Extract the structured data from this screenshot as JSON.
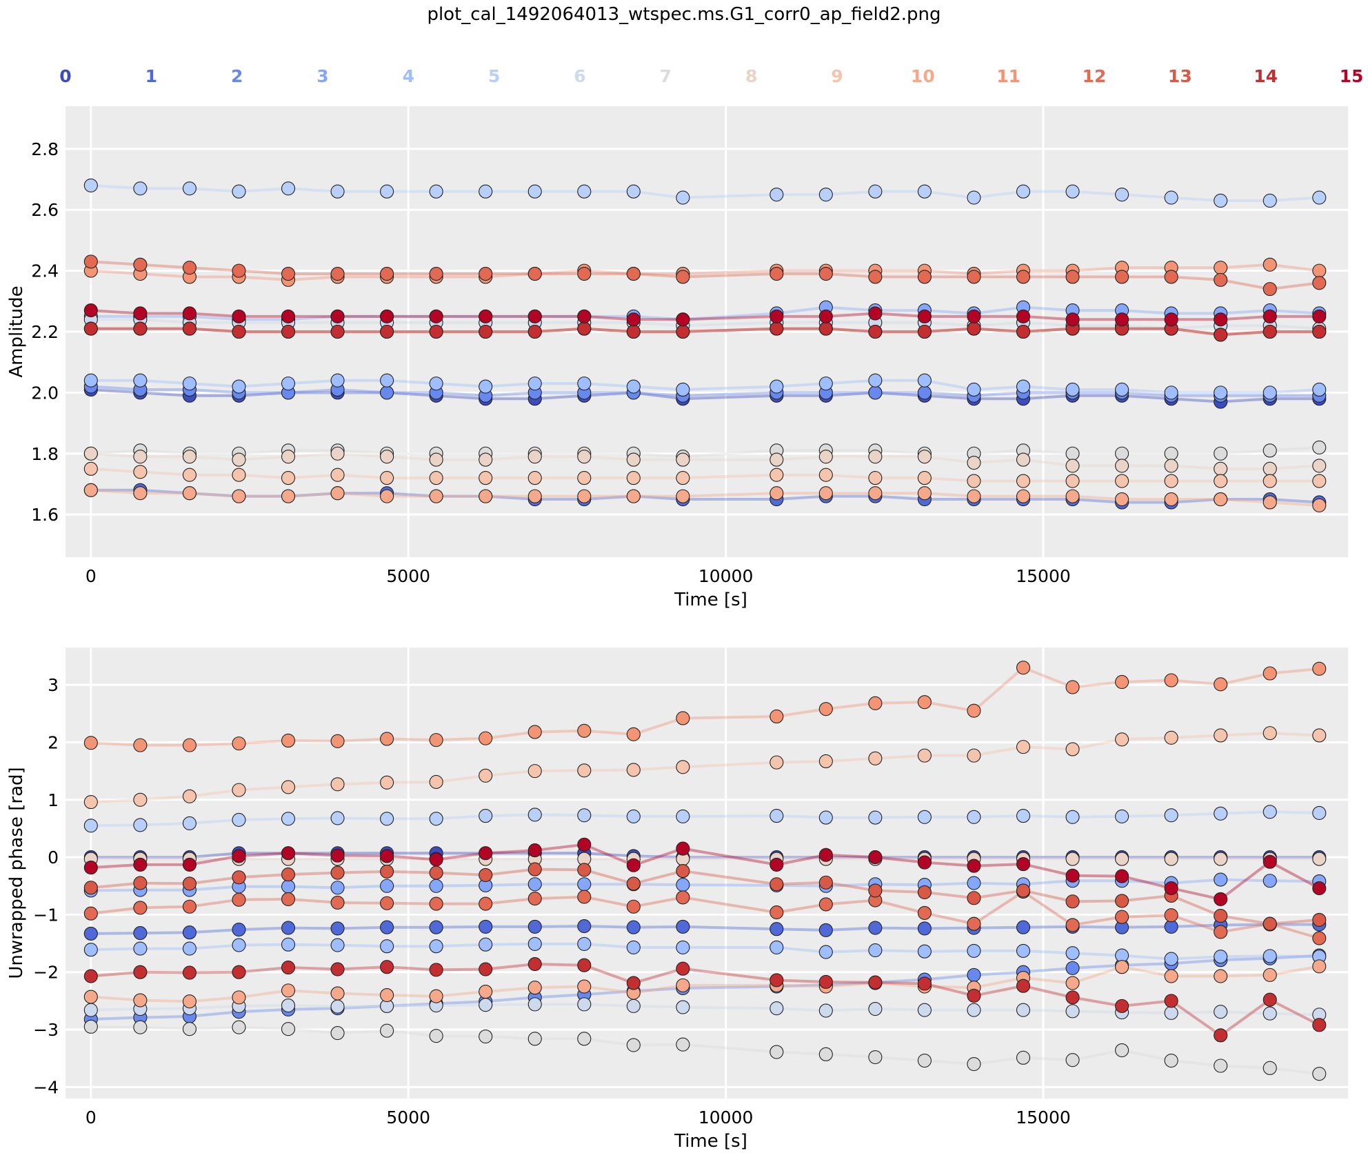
{
  "figure_title": "plot_cal_1492064013_wtspec.ms.G1_corr0_ap_field2.png",
  "colormap": "coolwarm",
  "legend_labels": [
    "0",
    "1",
    "2",
    "3",
    "4",
    "5",
    "6",
    "7",
    "8",
    "9",
    "10",
    "11",
    "12",
    "13",
    "14",
    "15"
  ],
  "legend_colors": [
    "#3b4cc0",
    "#4f69d9",
    "#6788ee",
    "#84a7fc",
    "#9ebeff",
    "#b7cff9",
    "#cdd9ec",
    "#dddcdc",
    "#ead4c8",
    "#f5c4ac",
    "#f6a98a",
    "#f39475",
    "#e26952",
    "#d85a46",
    "#c32e31",
    "#b40426"
  ],
  "chart_data": [
    {
      "type": "line",
      "panel": "top",
      "xlabel": "Time [s]",
      "ylabel": "Amplitude",
      "xlim": [
        -400,
        19800
      ],
      "ylim": [
        1.46,
        2.94
      ],
      "xticks": [
        0,
        5000,
        10000,
        15000
      ],
      "xtick_labels": [
        "0",
        "5000",
        "10000",
        "15000"
      ],
      "yticks": [
        1.6,
        1.8,
        2.0,
        2.2,
        2.4,
        2.6,
        2.8
      ],
      "ytick_labels": [
        "1.6",
        "1.8",
        "2.0",
        "2.2",
        "2.4",
        "2.6",
        "2.8"
      ],
      "grid": true,
      "x": [
        0,
        777,
        1554,
        2331,
        3108,
        3885,
        4662,
        5439,
        6216,
        6993,
        7770,
        8547,
        9324,
        10800,
        11577,
        12354,
        13131,
        13908,
        14685,
        15462,
        16239,
        17016,
        17793,
        18570,
        19347
      ],
      "series": [
        {
          "name": "0",
          "values": [
            2.01,
            2.0,
            1.99,
            1.99,
            2.0,
            2.0,
            2.0,
            1.99,
            1.98,
            1.98,
            1.99,
            2.0,
            1.98,
            1.99,
            1.99,
            2.0,
            1.99,
            1.98,
            1.98,
            1.99,
            1.99,
            1.98,
            1.97,
            1.98,
            1.98
          ]
        },
        {
          "name": "1",
          "values": [
            1.68,
            1.68,
            1.67,
            1.66,
            1.66,
            1.67,
            1.67,
            1.66,
            1.66,
            1.65,
            1.65,
            1.66,
            1.65,
            1.65,
            1.66,
            1.66,
            1.65,
            1.65,
            1.65,
            1.65,
            1.64,
            1.64,
            1.65,
            1.65,
            1.64
          ]
        },
        {
          "name": "2",
          "values": [
            2.02,
            2.01,
            2.01,
            2.0,
            2.0,
            2.01,
            2.0,
            2.0,
            1.99,
            2.0,
            2.0,
            2.0,
            1.99,
            2.0,
            2.0,
            2.0,
            2.0,
            1.99,
            2.0,
            2.0,
            2.0,
            1.99,
            1.99,
            1.99,
            1.99
          ]
        },
        {
          "name": "3",
          "values": [
            2.25,
            2.25,
            2.25,
            2.24,
            2.24,
            2.25,
            2.25,
            2.25,
            2.25,
            2.25,
            2.25,
            2.25,
            2.24,
            2.26,
            2.28,
            2.27,
            2.27,
            2.26,
            2.28,
            2.27,
            2.27,
            2.26,
            2.26,
            2.27,
            2.26
          ]
        },
        {
          "name": "4",
          "values": [
            2.04,
            2.04,
            2.03,
            2.02,
            2.03,
            2.04,
            2.04,
            2.03,
            2.02,
            2.03,
            2.03,
            2.02,
            2.01,
            2.02,
            2.03,
            2.04,
            2.04,
            2.01,
            2.02,
            2.01,
            2.01,
            2.0,
            2.0,
            2.0,
            2.01
          ]
        },
        {
          "name": "5",
          "values": [
            2.68,
            2.67,
            2.67,
            2.66,
            2.67,
            2.66,
            2.66,
            2.66,
            2.66,
            2.66,
            2.66,
            2.66,
            2.64,
            2.65,
            2.65,
            2.66,
            2.66,
            2.64,
            2.66,
            2.66,
            2.65,
            2.64,
            2.63,
            2.63,
            2.64
          ]
        },
        {
          "name": "6",
          "values": [
            2.24,
            2.24,
            2.23,
            2.23,
            2.23,
            2.23,
            2.23,
            2.23,
            2.23,
            2.23,
            2.23,
            2.23,
            2.22,
            2.23,
            2.23,
            2.23,
            2.23,
            2.22,
            2.23,
            2.22,
            2.22,
            2.21,
            2.22,
            2.22,
            2.21
          ]
        },
        {
          "name": "7",
          "values": [
            1.8,
            1.81,
            1.8,
            1.8,
            1.81,
            1.81,
            1.8,
            1.8,
            1.8,
            1.8,
            1.8,
            1.8,
            1.79,
            1.81,
            1.81,
            1.81,
            1.8,
            1.8,
            1.81,
            1.8,
            1.8,
            1.8,
            1.8,
            1.81,
            1.82
          ]
        },
        {
          "name": "8",
          "values": [
            1.8,
            1.79,
            1.79,
            1.78,
            1.79,
            1.8,
            1.79,
            1.78,
            1.78,
            1.79,
            1.79,
            1.78,
            1.78,
            1.78,
            1.79,
            1.79,
            1.79,
            1.77,
            1.78,
            1.76,
            1.76,
            1.76,
            1.75,
            1.75,
            1.76
          ]
        },
        {
          "name": "9",
          "values": [
            1.75,
            1.74,
            1.73,
            1.73,
            1.72,
            1.73,
            1.72,
            1.72,
            1.72,
            1.72,
            1.72,
            1.72,
            1.72,
            1.73,
            1.73,
            1.72,
            1.72,
            1.71,
            1.71,
            1.71,
            1.71,
            1.71,
            1.71,
            1.71,
            1.71
          ]
        },
        {
          "name": "10",
          "values": [
            1.68,
            1.67,
            1.67,
            1.66,
            1.66,
            1.67,
            1.66,
            1.66,
            1.66,
            1.66,
            1.66,
            1.66,
            1.66,
            1.67,
            1.67,
            1.67,
            1.67,
            1.66,
            1.66,
            1.66,
            1.65,
            1.65,
            1.65,
            1.64,
            1.63
          ]
        },
        {
          "name": "11",
          "values": [
            2.4,
            2.39,
            2.38,
            2.38,
            2.37,
            2.38,
            2.38,
            2.38,
            2.38,
            2.39,
            2.4,
            2.39,
            2.39,
            2.4,
            2.4,
            2.4,
            2.4,
            2.39,
            2.4,
            2.4,
            2.41,
            2.41,
            2.41,
            2.42,
            2.4
          ]
        },
        {
          "name": "12",
          "values": [
            2.43,
            2.42,
            2.41,
            2.4,
            2.39,
            2.39,
            2.39,
            2.39,
            2.39,
            2.39,
            2.39,
            2.39,
            2.38,
            2.39,
            2.39,
            2.38,
            2.38,
            2.38,
            2.38,
            2.38,
            2.38,
            2.38,
            2.37,
            2.34,
            2.36
          ]
        },
        {
          "name": "13",
          "values": [
            2.21,
            2.21,
            2.21,
            2.2,
            2.2,
            2.2,
            2.2,
            2.2,
            2.2,
            2.2,
            2.21,
            2.2,
            2.2,
            2.21,
            2.21,
            2.2,
            2.2,
            2.21,
            2.2,
            2.21,
            2.21,
            2.21,
            2.19,
            2.2,
            2.2
          ]
        },
        {
          "name": "14",
          "values": [
            2.21,
            2.21,
            2.21,
            2.2,
            2.2,
            2.2,
            2.2,
            2.2,
            2.2,
            2.2,
            2.21,
            2.2,
            2.2,
            2.21,
            2.21,
            2.2,
            2.2,
            2.21,
            2.2,
            2.21,
            2.21,
            2.21,
            2.19,
            2.2,
            2.2
          ]
        },
        {
          "name": "15",
          "values": [
            2.27,
            2.26,
            2.26,
            2.25,
            2.25,
            2.25,
            2.25,
            2.25,
            2.25,
            2.25,
            2.25,
            2.24,
            2.24,
            2.25,
            2.25,
            2.26,
            2.25,
            2.25,
            2.25,
            2.24,
            2.24,
            2.24,
            2.24,
            2.25,
            2.25
          ]
        }
      ]
    },
    {
      "type": "line",
      "panel": "bottom",
      "xlabel": "Time [s]",
      "ylabel": "Unwrapped phase [rad]",
      "xlim": [
        -400,
        19800
      ],
      "ylim": [
        -4.2,
        3.65
      ],
      "xticks": [
        0,
        5000,
        10000,
        15000
      ],
      "xtick_labels": [
        "0",
        "5000",
        "10000",
        "15000"
      ],
      "yticks": [
        -4,
        -3,
        -2,
        -1,
        0,
        1,
        2,
        3
      ],
      "ytick_labels": [
        "−4",
        "−3",
        "−2",
        "−1",
        "0",
        "1",
        "2",
        "3"
      ],
      "grid": true,
      "x": [
        0,
        777,
        1554,
        2331,
        3108,
        3885,
        4662,
        5439,
        6216,
        6993,
        7770,
        8547,
        9324,
        10800,
        11577,
        12354,
        13131,
        13908,
        14685,
        15462,
        16239,
        17016,
        17793,
        18570,
        19347
      ],
      "series": [
        {
          "name": "0",
          "values": [
            0.0,
            0.0,
            0.0,
            0.07,
            0.07,
            0.07,
            0.07,
            0.07,
            0.07,
            0.07,
            0.07,
            0.02,
            0.0,
            0.0,
            0.0,
            0.0,
            0.0,
            0.0,
            0.0,
            0.0,
            0.0,
            0.0,
            0.0,
            0.0,
            0.0
          ]
        },
        {
          "name": "1",
          "values": [
            -1.33,
            -1.32,
            -1.31,
            -1.26,
            -1.23,
            -1.24,
            -1.22,
            -1.22,
            -1.21,
            -1.21,
            -1.2,
            -1.22,
            -1.21,
            -1.25,
            -1.27,
            -1.23,
            -1.24,
            -1.23,
            -1.22,
            -1.21,
            -1.22,
            -1.21,
            -1.18,
            -1.17,
            -1.17
          ]
        },
        {
          "name": "2",
          "values": [
            -2.82,
            -2.79,
            -2.77,
            -2.69,
            -2.65,
            -2.63,
            -2.59,
            -2.55,
            -2.51,
            -2.44,
            -2.39,
            -2.33,
            -2.28,
            -2.25,
            -2.22,
            -2.18,
            -2.13,
            -2.05,
            -2.0,
            -1.93,
            -1.88,
            -1.85,
            -1.79,
            -1.76,
            -1.71
          ]
        },
        {
          "name": "3",
          "values": [
            -0.58,
            -0.57,
            -0.57,
            -0.51,
            -0.51,
            -0.53,
            -0.5,
            -0.5,
            -0.49,
            -0.47,
            -0.47,
            -0.47,
            -0.48,
            -0.49,
            -0.5,
            -0.47,
            -0.48,
            -0.45,
            -0.47,
            -0.41,
            -0.41,
            -0.45,
            -0.39,
            -0.41,
            -0.42
          ]
        },
        {
          "name": "4",
          "values": [
            -1.61,
            -1.59,
            -1.59,
            -1.53,
            -1.52,
            -1.53,
            -1.55,
            -1.55,
            -1.52,
            -1.51,
            -1.51,
            -1.57,
            -1.57,
            -1.57,
            -1.65,
            -1.62,
            -1.64,
            -1.63,
            -1.63,
            -1.67,
            -1.71,
            -1.77,
            -1.73,
            -1.72,
            -1.73
          ]
        },
        {
          "name": "5",
          "values": [
            0.55,
            0.56,
            0.59,
            0.65,
            0.67,
            0.68,
            0.67,
            0.67,
            0.72,
            0.74,
            0.73,
            0.71,
            0.71,
            0.72,
            0.69,
            0.69,
            0.7,
            0.7,
            0.72,
            0.7,
            0.71,
            0.73,
            0.76,
            0.79,
            0.77
          ]
        },
        {
          "name": "6",
          "values": [
            -2.66,
            -2.64,
            -2.63,
            -2.59,
            -2.58,
            -2.6,
            -2.59,
            -2.58,
            -2.57,
            -2.56,
            -2.56,
            -2.59,
            -2.61,
            -2.63,
            -2.67,
            -2.64,
            -2.66,
            -2.66,
            -2.66,
            -2.68,
            -2.7,
            -2.71,
            -2.69,
            -2.72,
            -2.74
          ]
        },
        {
          "name": "7",
          "values": [
            -2.95,
            -2.96,
            -2.99,
            -2.96,
            -2.99,
            -3.06,
            -3.02,
            -3.11,
            -3.12,
            -3.16,
            -3.16,
            -3.27,
            -3.26,
            -3.39,
            -3.43,
            -3.48,
            -3.54,
            -3.6,
            -3.49,
            -3.53,
            -3.36,
            -3.54,
            -3.63,
            -3.67,
            -3.77
          ]
        },
        {
          "name": "8",
          "values": [
            -0.03,
            -0.03,
            -0.03,
            -0.03,
            -0.03,
            -0.03,
            -0.03,
            -0.03,
            -0.03,
            -0.03,
            -0.03,
            -0.03,
            -0.03,
            -0.03,
            -0.03,
            -0.03,
            -0.03,
            -0.03,
            -0.03,
            -0.03,
            -0.03,
            -0.03,
            -0.03,
            -0.03,
            -0.03
          ]
        },
        {
          "name": "9",
          "values": [
            0.96,
            1.0,
            1.06,
            1.17,
            1.22,
            1.27,
            1.3,
            1.31,
            1.42,
            1.5,
            1.51,
            1.52,
            1.57,
            1.65,
            1.67,
            1.72,
            1.77,
            1.77,
            1.92,
            1.88,
            2.05,
            2.08,
            2.12,
            2.16,
            2.12
          ]
        },
        {
          "name": "10",
          "values": [
            -2.43,
            -2.49,
            -2.51,
            -2.44,
            -2.32,
            -2.37,
            -2.4,
            -2.42,
            -2.34,
            -2.27,
            -2.25,
            -2.36,
            -2.23,
            -2.23,
            -2.25,
            -2.19,
            -2.25,
            -2.27,
            -2.1,
            -2.19,
            -1.91,
            -2.07,
            -2.07,
            -2.05,
            -1.9
          ]
        },
        {
          "name": "11",
          "values": [
            1.99,
            1.95,
            1.95,
            1.98,
            2.03,
            2.02,
            2.06,
            2.04,
            2.07,
            2.18,
            2.2,
            2.14,
            2.42,
            2.45,
            2.58,
            2.68,
            2.7,
            2.55,
            3.3,
            2.96,
            3.05,
            3.08,
            3.01,
            3.2,
            3.28
          ]
        },
        {
          "name": "12",
          "values": [
            -0.98,
            -0.88,
            -0.86,
            -0.74,
            -0.73,
            -0.79,
            -0.8,
            -0.81,
            -0.81,
            -0.72,
            -0.69,
            -0.86,
            -0.7,
            -0.96,
            -0.82,
            -0.75,
            -0.97,
            -1.16,
            -0.6,
            -1.18,
            -1.04,
            -1.01,
            -1.3,
            -1.16,
            -1.41
          ]
        },
        {
          "name": "13",
          "values": [
            -0.53,
            -0.45,
            -0.46,
            -0.35,
            -0.3,
            -0.27,
            -0.25,
            -0.27,
            -0.31,
            -0.21,
            -0.22,
            -0.46,
            -0.24,
            -0.47,
            -0.44,
            -0.58,
            -0.61,
            -0.71,
            -0.58,
            -0.77,
            -0.76,
            -0.67,
            -1.02,
            -1.16,
            -1.09
          ]
        },
        {
          "name": "14",
          "values": [
            -2.07,
            -2.0,
            -2.01,
            -2.0,
            -1.92,
            -1.95,
            -1.91,
            -1.96,
            -1.95,
            -1.86,
            -1.88,
            -2.19,
            -1.94,
            -2.14,
            -2.17,
            -2.18,
            -2.2,
            -2.41,
            -2.24,
            -2.44,
            -2.59,
            -2.5,
            -3.1,
            -2.48,
            -2.92
          ]
        },
        {
          "name": "15",
          "values": [
            -0.18,
            -0.13,
            -0.13,
            0.02,
            0.07,
            0.03,
            0.02,
            -0.04,
            0.07,
            0.12,
            0.22,
            -0.14,
            0.15,
            -0.13,
            0.04,
            0.0,
            -0.09,
            -0.15,
            -0.12,
            -0.32,
            -0.33,
            -0.54,
            -0.73,
            -0.08,
            -0.54
          ]
        }
      ]
    }
  ]
}
